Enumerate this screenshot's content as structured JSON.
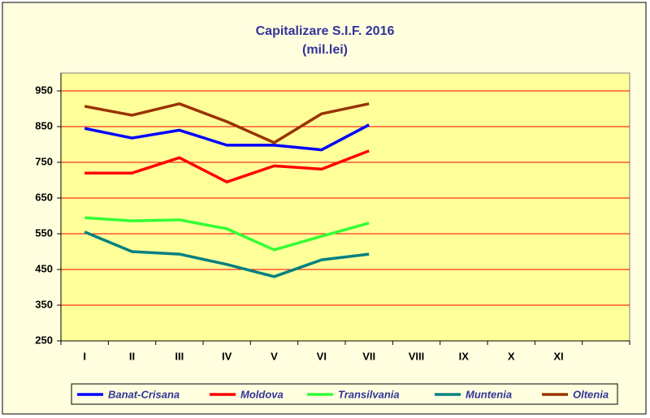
{
  "chart_data": {
    "type": "line",
    "title": "Capitalizare S.I.F. 2016",
    "subtitle": "(mil.lei)",
    "categories": [
      "I",
      "II",
      "III",
      "IV",
      "V",
      "VI",
      "VII",
      "VIII",
      "IX",
      "X",
      "XI",
      null
    ],
    "series": [
      {
        "name": "Banat-Crisana",
        "color": "#0000ff",
        "values": [
          845,
          818,
          840,
          798,
          798,
          785,
          855,
          null,
          null,
          null,
          null,
          null
        ]
      },
      {
        "name": "Moldova",
        "color": "#ff0000",
        "values": [
          720,
          720,
          763,
          695,
          740,
          731,
          782,
          null,
          null,
          null,
          null,
          null
        ]
      },
      {
        "name": "Transilvania",
        "color": "#33ff33",
        "values": [
          595,
          586,
          589,
          564,
          505,
          543,
          580,
          null,
          null,
          null,
          null,
          null
        ]
      },
      {
        "name": "Muntenia",
        "color": "#008080",
        "values": [
          555,
          500,
          493,
          464,
          430,
          477,
          493,
          null,
          null,
          null,
          null,
          null
        ]
      },
      {
        "name": "Oltenia",
        "color": "#993300",
        "values": [
          907,
          882,
          914,
          864,
          805,
          886,
          914,
          null,
          null,
          null,
          null,
          null
        ]
      }
    ],
    "ylim": [
      250,
      1000
    ],
    "yticks": [
      250,
      350,
      450,
      550,
      650,
      750,
      850,
      950
    ],
    "grid": true,
    "legend": "bottom"
  }
}
